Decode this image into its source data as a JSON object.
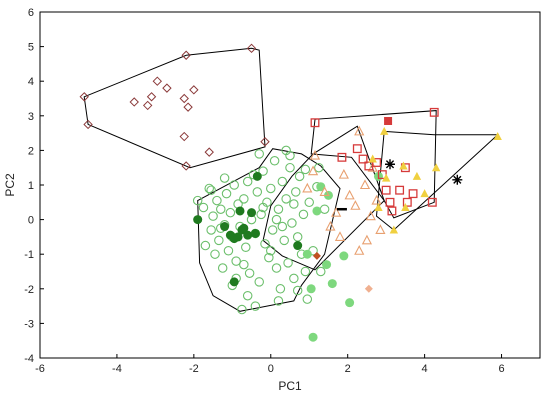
{
  "chart_data": {
    "type": "scatter",
    "xlabel": "PC1",
    "ylabel": "PC2",
    "xlim": [
      -6,
      7
    ],
    "ylim": [
      -4,
      6
    ],
    "xticks": [
      -6,
      -4,
      -2,
      0,
      2,
      4,
      6
    ],
    "yticks": [
      -4,
      -3,
      -2,
      -1,
      0,
      1,
      2,
      3,
      4,
      5,
      6
    ],
    "hulls": [
      {
        "points": [
          [
            -4.85,
            3.55
          ],
          [
            -2.2,
            4.75
          ],
          [
            -0.5,
            4.95
          ],
          [
            -0.3,
            4.9
          ],
          [
            -0.15,
            2.1
          ],
          [
            -2.1,
            1.5
          ],
          [
            -4.75,
            2.75
          ]
        ]
      },
      {
        "points": [
          [
            -1.9,
            0.55
          ],
          [
            -0.3,
            1.5
          ],
          [
            0.05,
            2.05
          ],
          [
            0.8,
            1.9
          ],
          [
            1.3,
            1.55
          ],
          [
            1.8,
            0.9
          ],
          [
            1.4,
            -1.0
          ],
          [
            0.8,
            -1.9
          ],
          [
            0.6,
            -2.35
          ],
          [
            -0.8,
            -2.65
          ],
          [
            -1.5,
            -2.2
          ],
          [
            -1.85,
            -1.25
          ]
        ]
      },
      {
        "points": [
          [
            -0.2,
            -0.6
          ],
          [
            0.0,
            0.4
          ],
          [
            0.55,
            1.25
          ],
          [
            1.1,
            1.9
          ],
          [
            2.25,
            2.7
          ],
          [
            2.95,
            0.55
          ],
          [
            1.15,
            -1.45
          ],
          [
            0.3,
            -1.05
          ]
        ]
      },
      {
        "points": [
          [
            1.05,
            1.9
          ],
          [
            1.15,
            2.9
          ],
          [
            4.3,
            3.15
          ],
          [
            4.25,
            0.5
          ],
          [
            3.2,
            0.05
          ],
          [
            2.95,
            0.55
          ],
          [
            2.1,
            1.8
          ]
        ]
      },
      {
        "points": [
          [
            2.95,
            2.55
          ],
          [
            4.25,
            2.45
          ],
          [
            5.9,
            2.45
          ],
          [
            3.2,
            -0.3
          ],
          [
            2.75,
            0.1
          ]
        ]
      }
    ],
    "series": [
      {
        "marker": "diamond-open",
        "color": "#8b3a3a",
        "points": [
          [
            -4.85,
            3.55
          ],
          [
            -4.75,
            2.75
          ],
          [
            -3.55,
            3.4
          ],
          [
            -3.2,
            3.3
          ],
          [
            -3.1,
            3.55
          ],
          [
            -2.95,
            4.0
          ],
          [
            -2.7,
            3.8
          ],
          [
            -2.25,
            3.5
          ],
          [
            -2.2,
            4.75
          ],
          [
            -2.0,
            3.75
          ],
          [
            -2.15,
            3.25
          ],
          [
            -2.25,
            2.4
          ],
          [
            -2.2,
            1.55
          ],
          [
            -1.6,
            1.95
          ],
          [
            -0.5,
            4.95
          ],
          [
            -0.15,
            2.25
          ]
        ]
      },
      {
        "marker": "circle-open",
        "color": "#6cbf6c",
        "points": [
          [
            -1.9,
            0.55
          ],
          [
            -1.75,
            0.35
          ],
          [
            -1.6,
            0.9
          ],
          [
            -1.55,
            -0.3
          ],
          [
            -1.5,
            0.1
          ],
          [
            -1.45,
            -1.0
          ],
          [
            -1.4,
            0.55
          ],
          [
            -1.35,
            -0.6
          ],
          [
            -1.3,
            0.3
          ],
          [
            -1.25,
            -1.4
          ],
          [
            -1.2,
            -0.15
          ],
          [
            -1.15,
            0.75
          ],
          [
            -1.1,
            -0.9
          ],
          [
            -1.05,
            0.2
          ],
          [
            -1.0,
            -0.5
          ],
          [
            -0.95,
            1.0
          ],
          [
            -0.9,
            -1.2
          ],
          [
            -0.85,
            0.45
          ],
          [
            -0.8,
            -0.2
          ],
          [
            -0.75,
            -2.6
          ],
          [
            -0.7,
            0.6
          ],
          [
            -0.65,
            -0.8
          ],
          [
            -0.6,
            1.1
          ],
          [
            -0.55,
            -1.55
          ],
          [
            -0.5,
            0.0
          ],
          [
            -0.45,
            1.3
          ],
          [
            -0.4,
            -0.4
          ],
          [
            -0.35,
            0.8
          ],
          [
            -0.3,
            -1.8
          ],
          [
            -0.25,
            0.15
          ],
          [
            -0.2,
            1.4
          ],
          [
            -0.15,
            -0.7
          ],
          [
            -0.1,
            0.5
          ],
          [
            -0.05,
            -1.1
          ],
          [
            0.0,
            0.9
          ],
          [
            0.05,
            -0.3
          ],
          [
            0.1,
            1.7
          ],
          [
            0.15,
            -1.4
          ],
          [
            0.2,
            0.3
          ],
          [
            0.25,
            -2.0
          ],
          [
            0.3,
            1.1
          ],
          [
            0.35,
            -0.6
          ],
          [
            0.4,
            0.6
          ],
          [
            0.45,
            -1.25
          ],
          [
            0.5,
            1.5
          ],
          [
            0.55,
            -0.1
          ],
          [
            0.6,
            -1.7
          ],
          [
            0.65,
            0.8
          ],
          [
            0.7,
            -0.5
          ],
          [
            0.75,
            1.25
          ],
          [
            0.8,
            -1.0
          ],
          [
            0.85,
            0.15
          ],
          [
            0.9,
            1.45
          ],
          [
            0.95,
            -2.3
          ],
          [
            1.0,
            0.5
          ],
          [
            1.1,
            -0.9
          ],
          [
            1.2,
            0.95
          ],
          [
            1.3,
            -1.5
          ],
          [
            1.4,
            0.3
          ],
          [
            -1.7,
            -0.75
          ],
          [
            -1.2,
            1.2
          ],
          [
            -0.9,
            -1.7
          ],
          [
            -0.6,
            -2.2
          ],
          [
            -0.3,
            1.9
          ],
          [
            0.2,
            -2.35
          ],
          [
            0.4,
            2.0
          ],
          [
            0.7,
            -2.05
          ],
          [
            -1.55,
            0.85
          ],
          [
            -1.0,
            -1.9
          ],
          [
            -0.4,
            -2.5
          ],
          [
            0.15,
            0.0
          ],
          [
            0.5,
            1.85
          ],
          [
            1.25,
            1.5
          ],
          [
            0.9,
            -1.5
          ],
          [
            -0.7,
            -1.3
          ],
          [
            -1.3,
            -0.25
          ],
          [
            0.0,
            -0.9
          ],
          [
            0.3,
            -0.2
          ],
          [
            -0.2,
            0.35
          ],
          [
            0.6,
            0.45
          ]
        ]
      },
      {
        "marker": "circle-filled",
        "color": "#1f7a1f",
        "points": [
          [
            -1.9,
            0.0
          ],
          [
            -1.2,
            -0.2
          ],
          [
            -1.05,
            -0.45
          ],
          [
            -0.95,
            -0.55
          ],
          [
            -0.85,
            -0.5
          ],
          [
            -0.75,
            -0.3
          ],
          [
            -0.7,
            -0.25
          ],
          [
            -0.6,
            -0.45
          ],
          [
            -0.5,
            0.2
          ],
          [
            -0.4,
            -0.4
          ],
          [
            -0.35,
            1.25
          ],
          [
            -0.95,
            -1.8
          ],
          [
            -0.8,
            0.25
          ],
          [
            0.7,
            -0.75
          ]
        ]
      },
      {
        "marker": "circle-filled",
        "color": "#7ed87e",
        "points": [
          [
            1.05,
            -2.0
          ],
          [
            1.2,
            0.25
          ],
          [
            1.3,
            0.95
          ],
          [
            1.5,
            0.7
          ],
          [
            1.6,
            -1.85
          ],
          [
            1.9,
            -1.05
          ],
          [
            2.05,
            -2.4
          ],
          [
            2.8,
            1.25
          ],
          [
            1.1,
            -3.4
          ],
          [
            0.95,
            -1.0
          ],
          [
            1.45,
            -1.3
          ]
        ]
      },
      {
        "marker": "triangle-open",
        "color": "#e8a070",
        "points": [
          [
            1.15,
            1.85
          ],
          [
            1.1,
            1.4
          ],
          [
            1.4,
            0.8
          ],
          [
            1.55,
            -0.2
          ],
          [
            1.8,
            -0.5
          ],
          [
            1.9,
            1.3
          ],
          [
            2.05,
            0.7
          ],
          [
            2.2,
            0.4
          ],
          [
            2.3,
            2.55
          ],
          [
            2.45,
            1.0
          ],
          [
            2.5,
            -0.6
          ],
          [
            2.6,
            0.1
          ],
          [
            2.65,
            1.5
          ],
          [
            2.75,
            0.55
          ],
          [
            2.3,
            -0.9
          ],
          [
            2.85,
            -0.3
          ],
          [
            1.7,
            0.2
          ],
          [
            0.95,
            0.9
          ]
        ]
      },
      {
        "marker": "square-open",
        "color": "#d63a3a",
        "points": [
          [
            1.15,
            2.8
          ],
          [
            1.85,
            1.8
          ],
          [
            2.25,
            2.05
          ],
          [
            2.4,
            1.75
          ],
          [
            2.55,
            1.55
          ],
          [
            2.75,
            1.65
          ],
          [
            2.9,
            1.3
          ],
          [
            3.0,
            0.85
          ],
          [
            3.1,
            0.5
          ],
          [
            3.15,
            0.25
          ],
          [
            3.35,
            0.85
          ],
          [
            3.5,
            1.5
          ],
          [
            3.55,
            0.5
          ],
          [
            3.7,
            0.75
          ],
          [
            4.2,
            0.5
          ],
          [
            4.25,
            3.1
          ]
        ]
      },
      {
        "marker": "square-filled",
        "color": "#d63a3a",
        "points": [
          [
            3.05,
            2.85
          ]
        ]
      },
      {
        "marker": "triangle-filled",
        "color": "#f0d040",
        "points": [
          [
            2.95,
            2.55
          ],
          [
            2.65,
            1.75
          ],
          [
            3.0,
            1.2
          ],
          [
            3.45,
            1.55
          ],
          [
            3.8,
            1.25
          ],
          [
            4.0,
            0.75
          ],
          [
            3.5,
            0.35
          ],
          [
            3.2,
            -0.3
          ],
          [
            4.3,
            1.5
          ],
          [
            5.9,
            2.4
          ],
          [
            2.8,
            0.35
          ]
        ]
      },
      {
        "marker": "asterisk",
        "color": "#000000",
        "points": [
          [
            3.1,
            1.6
          ],
          [
            4.85,
            1.15
          ]
        ]
      },
      {
        "marker": "dash",
        "color": "#000000",
        "points": [
          [
            1.85,
            0.3
          ]
        ]
      },
      {
        "marker": "diamond-filled",
        "color": "#c05020",
        "points": [
          [
            1.2,
            -1.05
          ]
        ]
      },
      {
        "marker": "diamond-filled",
        "color": "#f0b090",
        "points": [
          [
            2.55,
            -2.0
          ]
        ]
      }
    ]
  }
}
